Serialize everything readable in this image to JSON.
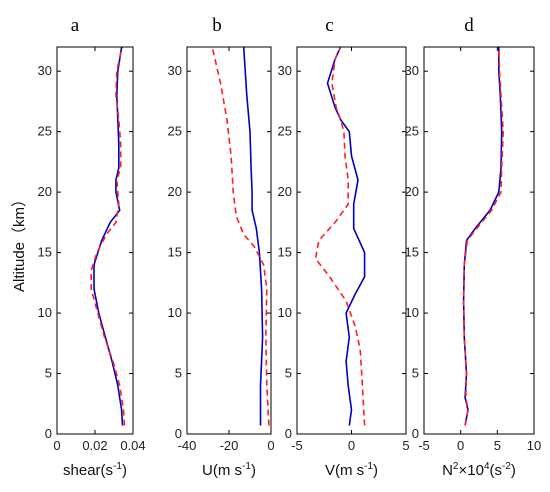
{
  "figure": {
    "ylabel": "Altitude（km）"
  },
  "chart_data": [
    {
      "type": "line",
      "panel_letter": "a",
      "xlabel": "shear(s",
      "xlabel_sup": "-1",
      "xlabel_tail": ")",
      "xlim": [
        0,
        0.04
      ],
      "xticks": [
        0,
        0.02,
        0.04
      ],
      "xtick_labels": [
        "0",
        "0.02",
        "0.04"
      ],
      "ylim": [
        0,
        32
      ],
      "yticks": [
        0,
        5,
        10,
        15,
        20,
        25,
        30
      ],
      "ytick_labels": [
        "0",
        "5",
        "10",
        "15",
        "20",
        "25",
        "30"
      ],
      "series": [
        {
          "color": "#0000c0",
          "dash": "solid",
          "points": [
            [
              0.0345,
              0.7
            ],
            [
              0.034,
              2
            ],
            [
              0.032,
              4
            ],
            [
              0.029,
              6
            ],
            [
              0.0255,
              8
            ],
            [
              0.022,
              10
            ],
            [
              0.0195,
              12
            ],
            [
              0.0195,
              14
            ],
            [
              0.0235,
              16
            ],
            [
              0.028,
              17.5
            ],
            [
              0.033,
              18.5
            ],
            [
              0.031,
              20
            ],
            [
              0.031,
              21
            ],
            [
              0.0325,
              22
            ],
            [
              0.0325,
              24
            ],
            [
              0.032,
              26
            ],
            [
              0.0315,
              28
            ],
            [
              0.032,
              30
            ],
            [
              0.0335,
              31.5
            ],
            [
              0.034,
              32
            ]
          ]
        },
        {
          "color": "#ff2020",
          "dash": "dashed",
          "points": [
            [
              0.0355,
              0.7
            ],
            [
              0.035,
              2
            ],
            [
              0.033,
              4
            ],
            [
              0.0295,
              6
            ],
            [
              0.025,
              8
            ],
            [
              0.0215,
              10
            ],
            [
              0.018,
              12
            ],
            [
              0.018,
              13.5
            ],
            [
              0.021,
              15
            ],
            [
              0.026,
              16.5
            ],
            [
              0.031,
              17.5
            ],
            [
              0.0325,
              19
            ],
            [
              0.0315,
              21
            ],
            [
              0.0335,
              22
            ],
            [
              0.0335,
              24
            ],
            [
              0.0325,
              26
            ],
            [
              0.031,
              28
            ],
            [
              0.0315,
              30
            ],
            [
              0.0335,
              31.5
            ],
            [
              0.0345,
              32
            ]
          ]
        }
      ]
    },
    {
      "type": "line",
      "panel_letter": "b",
      "xlabel": "U(m s",
      "xlabel_sup": "-1",
      "xlabel_tail": ")",
      "xlim": [
        -40,
        0
      ],
      "xticks": [
        -40,
        -20,
        0
      ],
      "xtick_labels": [
        "-40",
        "-20",
        "0"
      ],
      "ylim": [
        0,
        32
      ],
      "yticks": [
        0,
        5,
        10,
        15,
        20,
        25,
        30
      ],
      "ytick_labels": [
        "0",
        "5",
        "10",
        "15",
        "20",
        "25",
        "30"
      ],
      "series": [
        {
          "color": "#0000c0",
          "dash": "solid",
          "points": [
            [
              -5,
              0.7
            ],
            [
              -5,
              4
            ],
            [
              -4,
              8
            ],
            [
              -4.5,
              12
            ],
            [
              -5.5,
              15
            ],
            [
              -7,
              17
            ],
            [
              -9,
              18.5
            ],
            [
              -9,
              20
            ],
            [
              -9.5,
              22
            ],
            [
              -10,
              25
            ],
            [
              -11.5,
              28
            ],
            [
              -13,
              32
            ]
          ]
        },
        {
          "color": "#ff2020",
          "dash": "dashed",
          "points": [
            [
              -1,
              0.7
            ],
            [
              -2,
              4
            ],
            [
              -2.5,
              8
            ],
            [
              -2,
              12
            ],
            [
              -3.5,
              14
            ],
            [
              -8,
              15.5
            ],
            [
              -13,
              16.5
            ],
            [
              -16.5,
              18
            ],
            [
              -18,
              20
            ],
            [
              -19,
              23
            ],
            [
              -21,
              26
            ],
            [
              -24,
              29
            ],
            [
              -28,
              32
            ]
          ]
        }
      ]
    },
    {
      "type": "line",
      "panel_letter": "c",
      "xlabel": "V(m s",
      "xlabel_sup": "-1",
      "xlabel_tail": ")",
      "xlim": [
        -5,
        5
      ],
      "xticks": [
        -5,
        0,
        5
      ],
      "xtick_labels": [
        "-5",
        "0",
        "5"
      ],
      "ylim": [
        0,
        32
      ],
      "yticks": [
        0,
        5,
        10,
        15,
        20,
        25,
        30
      ],
      "ytick_labels": [
        "0",
        "5",
        "10",
        "15",
        "20",
        "25",
        "30"
      ],
      "series": [
        {
          "color": "#0000c0",
          "dash": "solid",
          "points": [
            [
              -0.2,
              0.7
            ],
            [
              0,
              2
            ],
            [
              -0.3,
              4
            ],
            [
              -0.5,
              6
            ],
            [
              -0.2,
              8
            ],
            [
              -0.5,
              10
            ],
            [
              0.3,
              11.5
            ],
            [
              1.2,
              13
            ],
            [
              1.2,
              15
            ],
            [
              0.2,
              17
            ],
            [
              0.2,
              19
            ],
            [
              0.6,
              21
            ],
            [
              0,
              23
            ],
            [
              -0.2,
              25
            ],
            [
              -1,
              26
            ],
            [
              -1.5,
              27
            ],
            [
              -2.2,
              29
            ],
            [
              -1.5,
              31
            ],
            [
              -1,
              32
            ]
          ]
        },
        {
          "color": "#ff2020",
          "dash": "dashed",
          "points": [
            [
              1.2,
              0.7
            ],
            [
              1,
              4
            ],
            [
              0.8,
              7
            ],
            [
              0.3,
              9
            ],
            [
              -0.5,
              11
            ],
            [
              -2,
              13
            ],
            [
              -3.3,
              14.5
            ],
            [
              -3,
              16
            ],
            [
              -1.5,
              17.5
            ],
            [
              -0.3,
              19
            ],
            [
              -0.3,
              21
            ],
            [
              -0.6,
              23
            ],
            [
              -0.7,
              25
            ],
            [
              -1,
              26
            ],
            [
              -1.4,
              27
            ],
            [
              -1.8,
              29
            ],
            [
              -1.5,
              31
            ],
            [
              -1,
              32
            ]
          ]
        }
      ]
    },
    {
      "type": "line",
      "panel_letter": "d",
      "xlabel": "N",
      "xlabel_sup": "2",
      "xlabel_tail": "×10",
      "xlabel_sup2": "4",
      "xlabel_tail2": "(s",
      "xlabel_sup3": "-2",
      "xlabel_tail3": ")",
      "xlim": [
        -5,
        10
      ],
      "xticks": [
        -5,
        0,
        5,
        10
      ],
      "xtick_labels": [
        "-5",
        "0",
        "5",
        "10"
      ],
      "ylim": [
        0,
        32
      ],
      "yticks": [
        0,
        5,
        10,
        15,
        20,
        25,
        30
      ],
      "ytick_labels": [
        "0",
        "5",
        "10",
        "15",
        "20",
        "25",
        "30"
      ],
      "series": [
        {
          "color": "#0000c0",
          "dash": "solid",
          "points": [
            [
              0.6,
              0.7
            ],
            [
              1,
              2
            ],
            [
              0.6,
              3
            ],
            [
              0.8,
              5
            ],
            [
              0.5,
              8
            ],
            [
              0.4,
              11
            ],
            [
              0.5,
              14
            ],
            [
              0.8,
              16
            ],
            [
              2,
              17
            ],
            [
              4,
              18.5
            ],
            [
              5.2,
              20
            ],
            [
              5.5,
              22
            ],
            [
              5.6,
              25
            ],
            [
              5.4,
              28
            ],
            [
              5.2,
              30
            ],
            [
              5.2,
              32
            ]
          ]
        },
        {
          "color": "#ff2020",
          "dash": "dashed",
          "points": [
            [
              0.6,
              0.7
            ],
            [
              1,
              2
            ],
            [
              0.7,
              3
            ],
            [
              0.8,
              5
            ],
            [
              0.5,
              8
            ],
            [
              0.4,
              11
            ],
            [
              0.5,
              14
            ],
            [
              0.9,
              16
            ],
            [
              2.2,
              17
            ],
            [
              4.2,
              18.5
            ],
            [
              5.5,
              20
            ],
            [
              5.6,
              22
            ],
            [
              5.8,
              25
            ],
            [
              5.5,
              28
            ],
            [
              5.3,
              30
            ],
            [
              5.2,
              32
            ]
          ]
        }
      ]
    }
  ]
}
